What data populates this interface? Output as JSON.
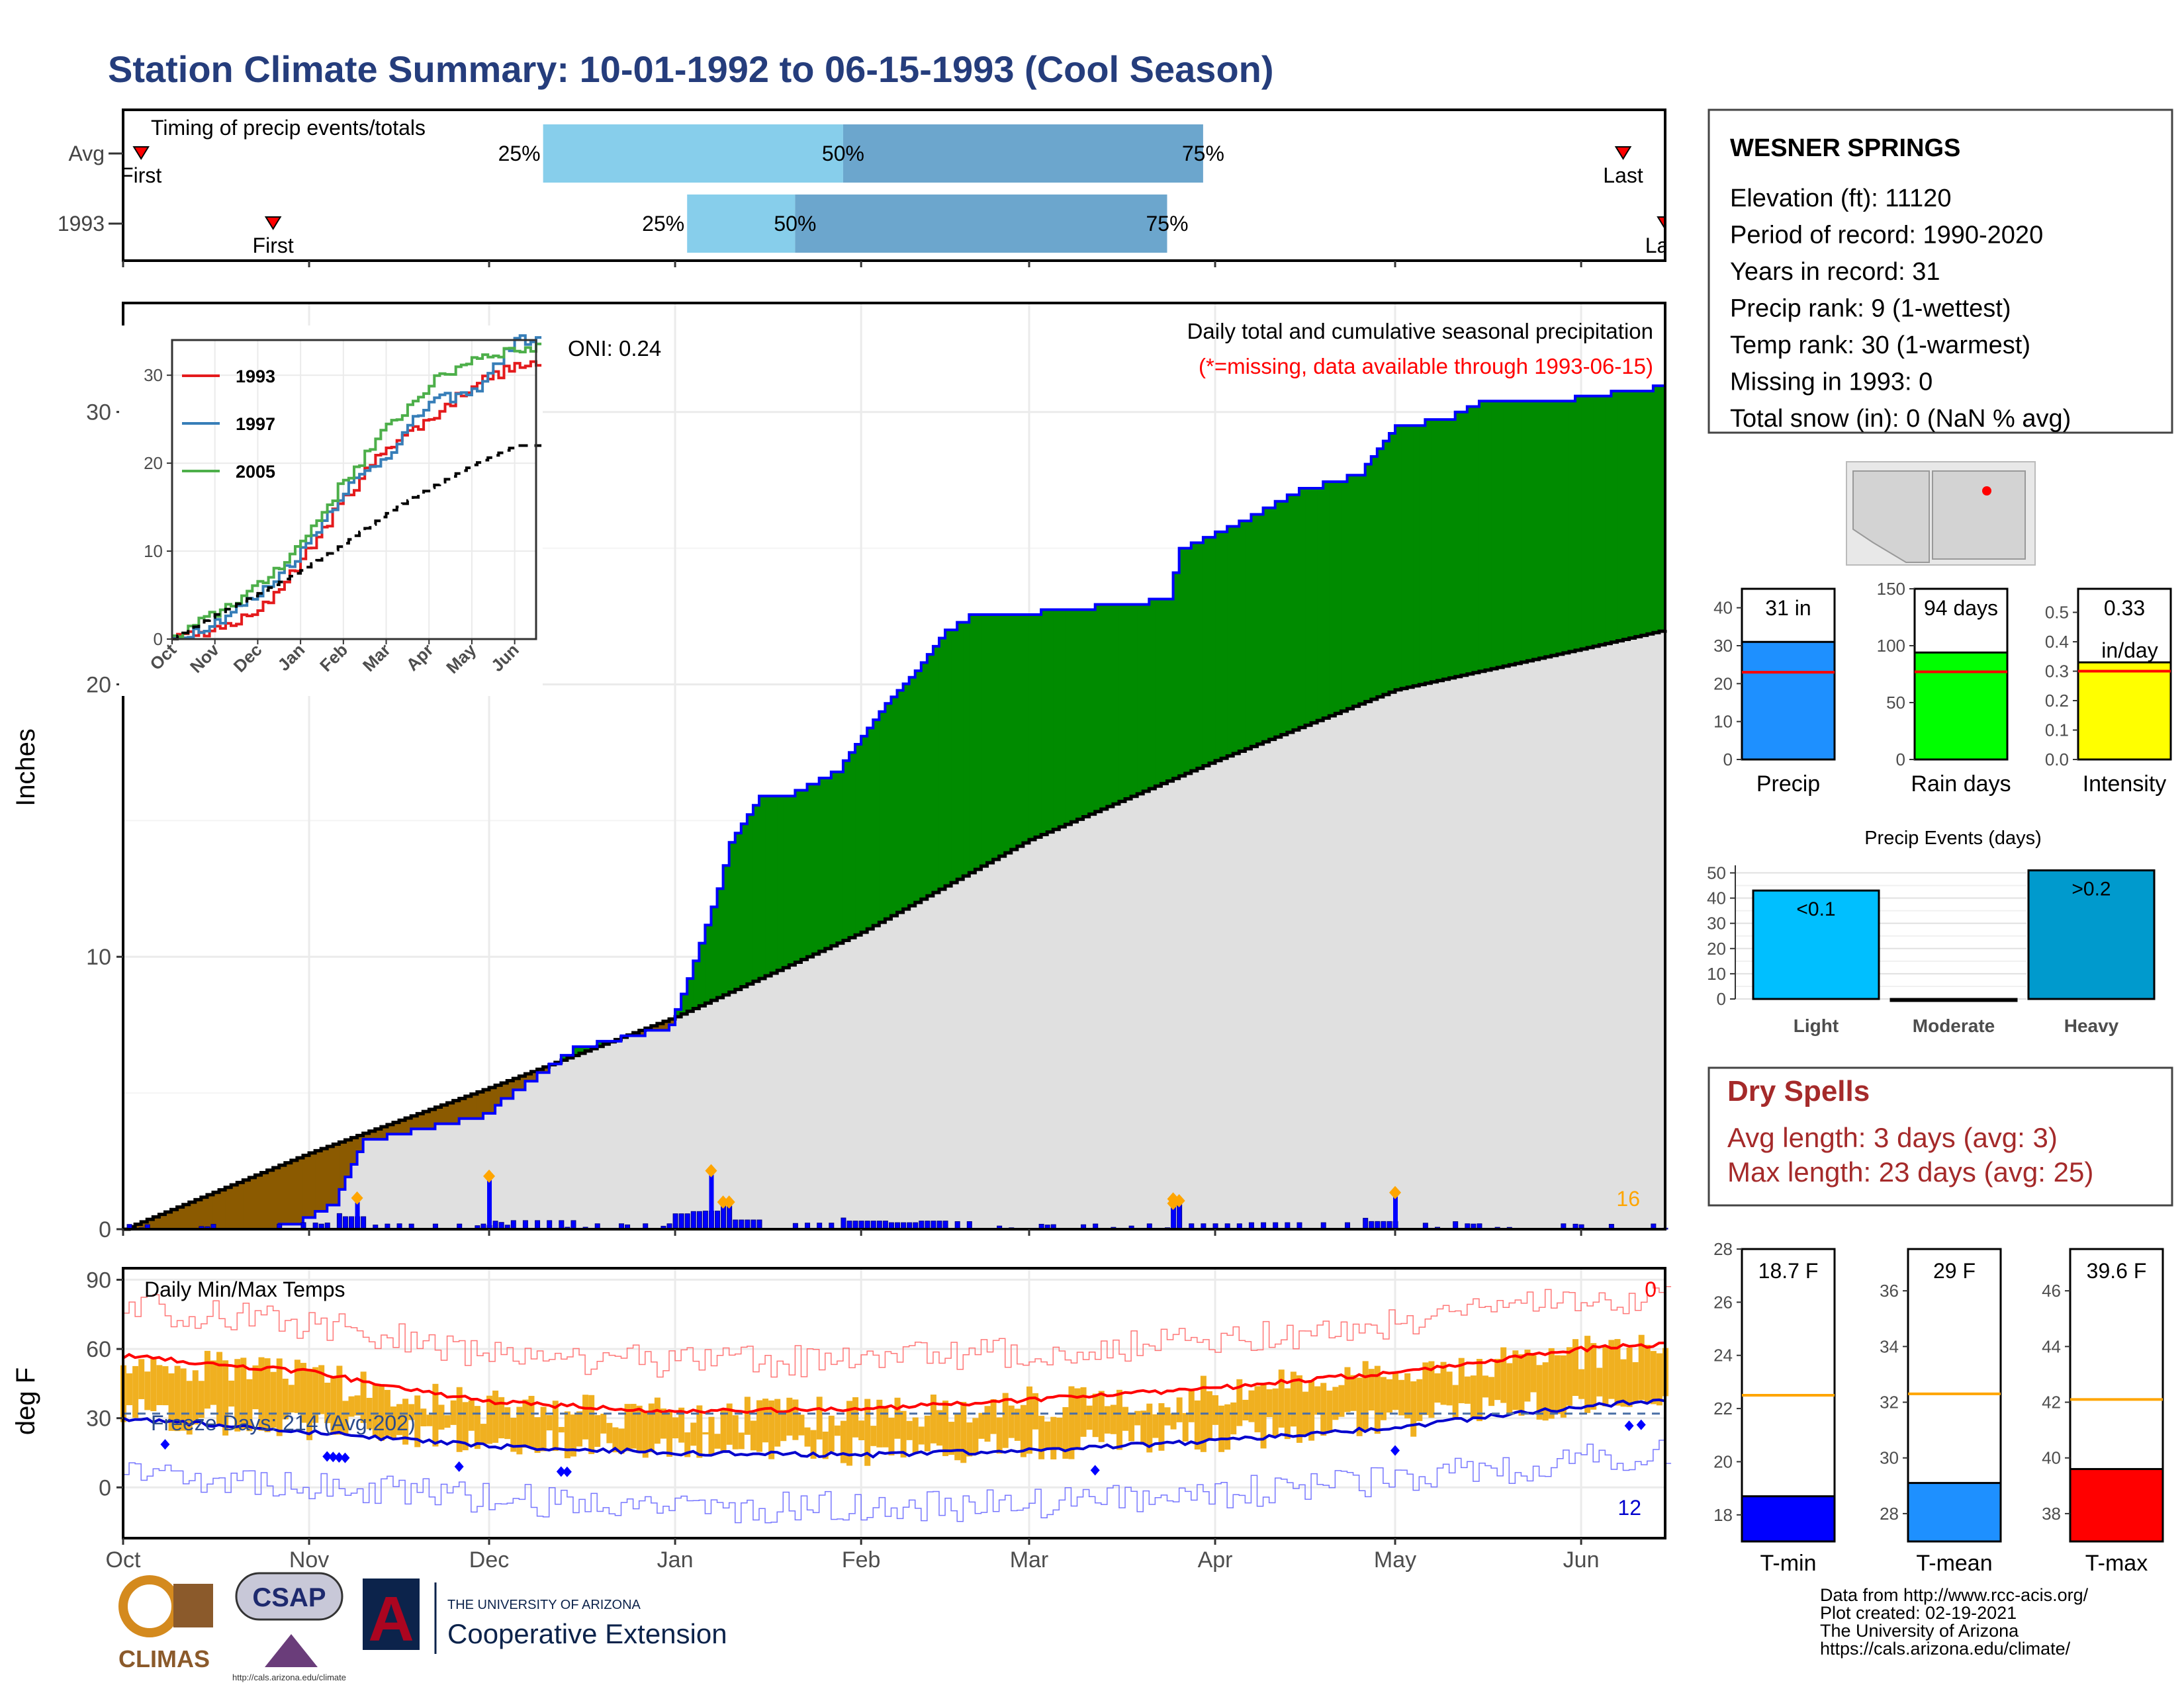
{
  "title": "Station Climate Summary: 10-01-1992 to 06-15-1993 (Cool Season)",
  "colors": {
    "title": "#253d7c",
    "q_light": "#87ceeb",
    "q_dark": "#6ca6cd",
    "cum_fill": "#008b00",
    "cum_line": "#0000ff",
    "deficit_fill": "#8b5a00",
    "avg_fill": "#e0e0e0",
    "dry_spells": "#a52a2a",
    "missing_note": "#ff0000",
    "temp_bars": "#f0b020",
    "tmax_line": "#ff0000",
    "tmin_line": "#0000cd",
    "event_dot": "#ffa500"
  },
  "timing": {
    "label": "Timing of precip events/totals",
    "rows": [
      {
        "row_label": "Avg",
        "first_label": "First",
        "last_label": "Last",
        "q25_label": "25%",
        "q50_label": "50%",
        "q75_label": "75%",
        "first": "1992-10-04",
        "q25": "1992-12-10",
        "q50": "1993-01-29",
        "q75": "1993-03-30",
        "last": "1993-06-08"
      },
      {
        "row_label": "1993",
        "first_label": "First",
        "last_label": "Last",
        "q25_label": "25%",
        "q50_label": "50%",
        "q75_label": "75%",
        "first": "1992-10-26",
        "q25": "1993-01-03",
        "q50": "1993-01-21",
        "q75": "1993-03-24",
        "last": "1993-06-15"
      }
    ]
  },
  "main": {
    "ylabel": "Inches",
    "oni": "ONI: 0.24",
    "caption": "Daily total and cumulative seasonal precipitation",
    "missing_note": "(*=missing, data available through 1993-06-15)",
    "corner_count": "16",
    "yticks": [
      "0",
      "10",
      "20",
      "30"
    ],
    "xticks": [
      "Oct",
      "Nov",
      "Dec",
      "Jan",
      "Feb",
      "Mar",
      "Apr",
      "May",
      "Jun"
    ]
  },
  "inset": {
    "legend": [
      "1993",
      "1997",
      "2005"
    ],
    "yticks": [
      "0",
      "10",
      "20",
      "30"
    ],
    "xticks": [
      "Oct",
      "Nov",
      "Dec",
      "Jan",
      "Feb",
      "Mar",
      "Apr",
      "May",
      "Jun"
    ]
  },
  "temps": {
    "label": "Daily Min/Max Temps",
    "ylabel": "deg F",
    "freeze": "Freeze Days: 214 (Avg:202)",
    "max_count": "0",
    "min_count": "12",
    "yticks": [
      "0",
      "30",
      "60",
      "90"
    ],
    "xticks": [
      "Oct",
      "Nov",
      "Dec",
      "Jan",
      "Feb",
      "Mar",
      "Apr",
      "May",
      "Jun"
    ]
  },
  "station": {
    "name": "WESNER SPRINGS",
    "lines": [
      "Elevation (ft): 11120",
      "Period of record: 1990-2020",
      "Years in record: 31",
      "Precip rank: 9 (1-wettest)",
      "Temp rank: 30 (1-warmest)",
      "Missing in 1993: 0",
      "Total snow (in): 0 (NaN % avg)"
    ]
  },
  "mini_bars": [
    {
      "name": "Precip",
      "value_label": "31 in",
      "value": 31,
      "avg": 23,
      "ymax": 45,
      "yticks": [
        "0",
        "10",
        "20",
        "30",
        "40"
      ],
      "tick_vals": [
        0,
        10,
        20,
        30,
        40
      ],
      "color": "#1e90ff"
    },
    {
      "name": "Rain days",
      "value_label": "94 days",
      "value": 94,
      "avg": 77,
      "ymax": 150,
      "yticks": [
        "0",
        "50",
        "100",
        "150"
      ],
      "tick_vals": [
        0,
        50,
        100,
        150
      ],
      "color": "#00ff00"
    },
    {
      "name": "Intensity",
      "value_label": "0.33",
      "value_label2": "in/day",
      "value": 0.33,
      "avg": 0.3,
      "ymax": 0.58,
      "yticks": [
        "0.0",
        "0.1",
        "0.2",
        "0.3",
        "0.4",
        "0.5"
      ],
      "tick_vals": [
        0,
        0.1,
        0.2,
        0.3,
        0.4,
        0.5
      ],
      "color": "#ffff00"
    }
  ],
  "events": {
    "title": "Precip Events (days)",
    "ymax": 53,
    "yticks": [
      "0",
      "10",
      "20",
      "30",
      "40",
      "50"
    ],
    "tick_vals": [
      0,
      10,
      20,
      30,
      40,
      50
    ],
    "categories": [
      {
        "name": "Light",
        "label": "<0.1",
        "value": 43,
        "color": "#00bfff"
      },
      {
        "name": "Moderate",
        "label": "",
        "value": 0,
        "color": "#1e90ff"
      },
      {
        "name": "Heavy",
        "label": ">0.2",
        "value": 51,
        "color": "#009acd"
      }
    ]
  },
  "dry_spells": {
    "title": "Dry Spells",
    "avg_length": "Avg length: 3 days (avg: 3)",
    "max_length": "Max length: 23 days (avg: 25)"
  },
  "temp_bars": [
    {
      "name": "T-min",
      "value_label": "18.7 F",
      "value": 18.7,
      "avg": 22.5,
      "ymin": 17,
      "ymax": 28,
      "yticks": [
        "18",
        "20",
        "22",
        "24",
        "26",
        "28"
      ],
      "tick_vals": [
        18,
        20,
        22,
        24,
        26,
        28
      ],
      "color": "#0000ff"
    },
    {
      "name": "T-mean",
      "value_label": "29 F",
      "value": 29.1,
      "avg": 32.3,
      "ymin": 27,
      "ymax": 37.5,
      "yticks": [
        "28",
        "30",
        "32",
        "34",
        "36"
      ],
      "tick_vals": [
        28,
        30,
        32,
        34,
        36
      ],
      "color": "#1e90ff"
    },
    {
      "name": "T-max",
      "value_label": "39.6 F",
      "value": 39.6,
      "avg": 42.1,
      "ymin": 37,
      "ymax": 47.5,
      "yticks": [
        "38",
        "40",
        "42",
        "44",
        "46"
      ],
      "tick_vals": [
        38,
        40,
        42,
        44,
        46
      ],
      "color": "#ff0000"
    }
  ],
  "footer": {
    "lines": [
      "Data from http://www.rcc-acis.org/",
      "Plot created: 02-19-2021",
      "The University of Arizona",
      "https://cals.arizona.edu/climate/"
    ],
    "logo_climas": "CLIMAS",
    "logo_csap": "CSAP",
    "logo_csap_url": "http://cals.arizona.edu/climate",
    "ua_top": "THE UNIVERSITY OF ARIZONA",
    "ua_main": "Cooperative Extension",
    "ua_letter": "A"
  },
  "chart_data": [
    {
      "type": "area",
      "title": "Daily total and cumulative seasonal precipitation",
      "ylabel": "Inches",
      "ylim": [
        0,
        34
      ],
      "x_range": [
        "1992-10-01",
        "1993-06-15"
      ],
      "series": [
        {
          "name": "1993",
          "x": [
            "1992-10-01",
            "1992-10-29",
            "1992-11-05",
            "1992-11-10",
            "1992-12-01",
            "1992-12-03",
            "1992-12-15",
            "1992-12-31",
            "1993-01-03",
            "1993-01-05",
            "1993-01-08",
            "1993-01-10",
            "1993-01-15",
            "1993-01-20",
            "1993-01-28",
            "1993-02-05",
            "1993-02-10",
            "1993-02-15",
            "1993-02-20",
            "1993-03-01",
            "1993-03-15",
            "1993-03-24",
            "1993-03-26",
            "1993-04-05",
            "1993-04-15",
            "1993-04-25",
            "1993-05-01",
            "1993-05-10",
            "1993-05-15",
            "1993-05-25",
            "1993-06-01",
            "1993-06-10",
            "1993-06-15"
          ],
          "values": [
            0,
            0.2,
            1.0,
            3.3,
            4.3,
            4.8,
            6.7,
            7.5,
            9.2,
            10.5,
            12.5,
            14.2,
            15.9,
            16.0,
            16.9,
            19.3,
            20.5,
            22.0,
            22.7,
            22.7,
            23.0,
            23.2,
            25.0,
            26.0,
            27.2,
            27.8,
            29.5,
            29.9,
            30.4,
            30.5,
            30.6,
            30.9,
            31.0
          ]
        },
        {
          "name": "Average",
          "x": [
            "1992-10-01",
            "1992-11-01",
            "1992-12-01",
            "1993-01-01",
            "1993-02-01",
            "1993-03-01",
            "1993-04-01",
            "1993-05-01",
            "1993-06-01",
            "1993-06-15"
          ],
          "values": [
            0,
            2.8,
            5.2,
            7.8,
            10.9,
            14.3,
            17.2,
            19.8,
            21.3,
            22.0
          ]
        }
      ],
      "daily_events": [
        {
          "x": "1992-11-09",
          "value": 1.0
        },
        {
          "x": "1992-12-01",
          "value": 1.8
        },
        {
          "x": "1993-01-07",
          "value": 2.0
        },
        {
          "x": "1993-03-25",
          "value": 0.8
        },
        {
          "x": "1993-05-01",
          "value": 1.2
        }
      ],
      "inset": {
        "type": "line",
        "ylim": [
          0,
          34
        ],
        "series": [
          {
            "name": "1993",
            "values": [
              0,
              1,
              3,
              9,
              16,
              22,
              25,
              29,
              31
            ]
          },
          {
            "name": "1997",
            "values": [
              0,
              2,
              5,
              10,
              17,
              21,
              27,
              28,
              34
            ]
          },
          {
            "name": "2005",
            "values": [
              0,
              3,
              6,
              11,
              18,
              24,
              29,
              32,
              33
            ]
          },
          {
            "name": "Average",
            "values": [
              0,
              2.8,
              5.2,
              7.8,
              10.9,
              14.3,
              17.2,
              19.8,
              22.0
            ]
          }
        ]
      }
    },
    {
      "type": "line",
      "title": "Daily Min/Max Temps",
      "ylabel": "deg F",
      "ylim": [
        -22,
        95
      ],
      "series": [
        {
          "name": "Tmax normal",
          "x": [
            "1992-10-01",
            "1992-11-01",
            "1992-12-01",
            "1993-01-01",
            "1993-02-01",
            "1993-03-01",
            "1993-04-01",
            "1993-05-01",
            "1993-06-01",
            "1993-06-15"
          ],
          "values": [
            57,
            50,
            37,
            33,
            34,
            38,
            43,
            50,
            60,
            62
          ]
        },
        {
          "name": "Tmin normal",
          "x": [
            "1992-10-01",
            "1992-11-01",
            "1992-12-01",
            "1993-01-01",
            "1993-02-01",
            "1993-03-01",
            "1993-04-01",
            "1993-05-01",
            "1993-06-01",
            "1993-06-15"
          ],
          "values": [
            30,
            24,
            18,
            15,
            14,
            16,
            20,
            26,
            35,
            38
          ]
        }
      ]
    }
  ]
}
